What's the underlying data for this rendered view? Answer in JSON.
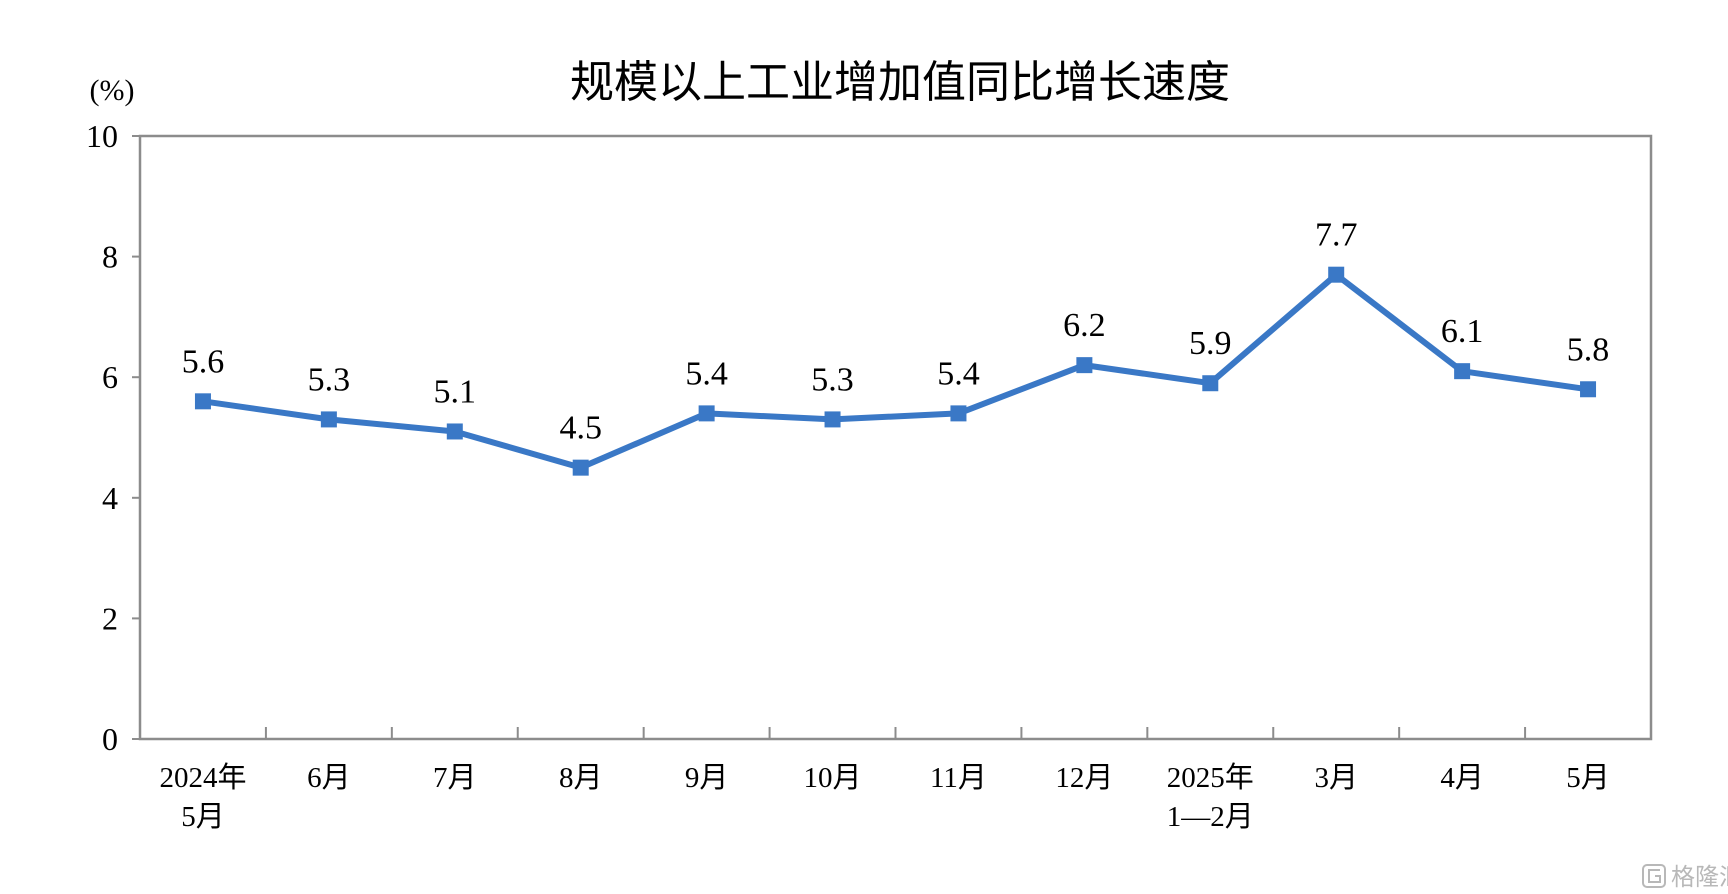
{
  "chart_data": {
    "type": "line",
    "title": "规模以上工业增加值同比增长速度",
    "ylabel": "(%)",
    "xlabel": "",
    "ylim": [
      0,
      10
    ],
    "yticks": [
      0,
      2,
      4,
      6,
      8,
      10
    ],
    "categories": [
      [
        "2024年",
        "5月"
      ],
      [
        "6月"
      ],
      [
        "7月"
      ],
      [
        "8月"
      ],
      [
        "9月"
      ],
      [
        "10月"
      ],
      [
        "11月"
      ],
      [
        "12月"
      ],
      [
        "2025年",
        "1—2月"
      ],
      [
        "3月"
      ],
      [
        "4月"
      ],
      [
        "5月"
      ]
    ],
    "series": [
      {
        "values": [
          5.6,
          5.3,
          5.1,
          4.5,
          5.4,
          5.3,
          5.4,
          6.2,
          5.9,
          7.7,
          6.1,
          5.8
        ]
      }
    ],
    "data_labels": [
      "5.6",
      "5.3",
      "5.1",
      "4.5",
      "5.4",
      "5.3",
      "5.4",
      "6.2",
      "5.9",
      "7.7",
      "6.1",
      "5.8"
    ],
    "grid": false,
    "legend": "none",
    "line_color": "#3a78c6",
    "frame_color": "#8c8c8c"
  },
  "watermark": {
    "text": "格隆汇",
    "icon": "logo-icon"
  }
}
